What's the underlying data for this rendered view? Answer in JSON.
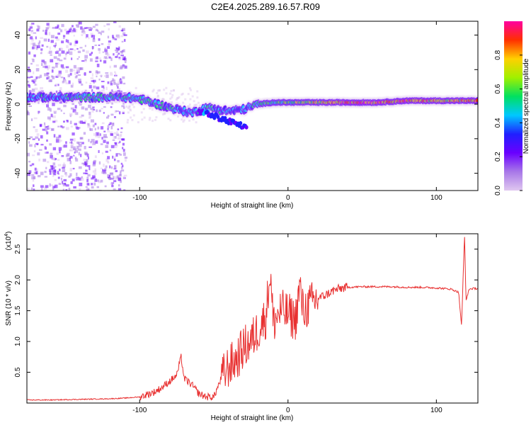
{
  "title": "C2E4.2025.289.16.57.R09",
  "colors": {
    "snr_line": "#e83030",
    "background": "#ffffff",
    "axis": "#000000"
  },
  "chart_data": [
    {
      "type": "heatmap",
      "title": "C2E4.2025.289.16.57.R09",
      "xlabel": "Height of straight line (km)",
      "ylabel": "Frequency (Hz)",
      "xlim": [
        -176,
        128
      ],
      "ylim": [
        -50,
        48
      ],
      "x_ticks": [
        -100,
        0,
        100
      ],
      "x_tick_labels": [
        "-100",
        "0",
        "100"
      ],
      "y_ticks": [
        -40,
        -20,
        0,
        20,
        40
      ],
      "y_tick_labels": [
        "-40",
        "-20",
        "0",
        "20",
        "40"
      ],
      "colorbar": {
        "label": "Normalized spectral amplitude",
        "range": [
          0,
          1
        ],
        "ticks": [
          0.0,
          0.2,
          0.4,
          0.6,
          0.8
        ],
        "tick_labels": [
          "0.0",
          "0.2",
          "0.4",
          "0.6",
          "0.8"
        ],
        "colormap": [
          "#e0c8f0",
          "#a878e8",
          "#6a00ff",
          "#2020ff",
          "#00c8ff",
          "#00e060",
          "#a0f000",
          "#ffd000",
          "#ff3000",
          "#ff00a0"
        ]
      },
      "ridge": [
        {
          "x": -176,
          "y": 4,
          "amp": 0.45
        },
        {
          "x": -140,
          "y": 4,
          "amp": 0.5
        },
        {
          "x": -110,
          "y": 4,
          "amp": 0.55
        },
        {
          "x": -100,
          "y": 3,
          "amp": 0.55
        },
        {
          "x": -80,
          "y": -2,
          "amp": 0.5
        },
        {
          "x": -65,
          "y": -5,
          "amp": 0.45
        },
        {
          "x": -55,
          "y": -2,
          "amp": 0.5
        },
        {
          "x": -40,
          "y": -4,
          "amp": 0.45
        },
        {
          "x": -30,
          "y": -3,
          "amp": 0.45
        },
        {
          "x": -20,
          "y": 0,
          "amp": 0.55
        },
        {
          "x": -10,
          "y": 1,
          "amp": 0.6
        },
        {
          "x": 0,
          "y": 1,
          "amp": 0.65
        },
        {
          "x": 20,
          "y": 1,
          "amp": 0.8
        },
        {
          "x": 40,
          "y": 1,
          "amp": 0.95
        },
        {
          "x": 60,
          "y": 1,
          "amp": 0.95
        },
        {
          "x": 80,
          "y": 2,
          "amp": 0.9
        },
        {
          "x": 100,
          "y": 2,
          "amp": 0.85
        },
        {
          "x": 128,
          "y": 2,
          "amp": 0.8
        }
      ],
      "scatter_region": {
        "x_from": -176,
        "x_to": -110,
        "y_from": -50,
        "y_to": 48,
        "amp_max": 0.25
      }
    },
    {
      "type": "line",
      "xlabel": "Height of straight line (km)",
      "ylabel": "SNR (10 * v/v)",
      "y_multiplier_label": "(x10",
      "y_multiplier_exp": "4",
      "xlim": [
        -176,
        128
      ],
      "ylim": [
        0,
        2.75
      ],
      "x_ticks": [
        -100,
        0,
        100
      ],
      "x_tick_labels": [
        "-100",
        "0",
        "100"
      ],
      "y_ticks": [
        0.5,
        1.0,
        1.5,
        2.0,
        2.5
      ],
      "y_tick_labels": [
        "0.5",
        "1.0",
        "1.5",
        "2.0",
        "2.5"
      ],
      "series": [
        {
          "name": "SNR",
          "x": [
            -176,
            -160,
            -140,
            -120,
            -110,
            -100,
            -90,
            -85,
            -80,
            -75,
            -72,
            -70,
            -65,
            -60,
            -55,
            -50,
            -45,
            -40,
            -35,
            -30,
            -25,
            -20,
            -15,
            -12,
            -10,
            -5,
            0,
            5,
            8,
            10,
            15,
            20,
            25,
            30,
            35,
            40,
            50,
            60,
            70,
            80,
            90,
            100,
            105,
            110,
            115,
            117,
            119,
            120,
            122,
            125,
            128
          ],
          "y": [
            0.05,
            0.05,
            0.06,
            0.07,
            0.08,
            0.1,
            0.18,
            0.25,
            0.35,
            0.45,
            0.75,
            0.4,
            0.3,
            0.15,
            0.1,
            0.1,
            0.4,
            0.6,
            0.7,
            0.9,
            1.0,
            1.2,
            1.4,
            2.15,
            1.3,
            1.5,
            1.45,
            1.35,
            1.9,
            1.5,
            1.6,
            1.7,
            1.75,
            1.82,
            1.86,
            1.88,
            1.89,
            1.89,
            1.89,
            1.88,
            1.88,
            1.87,
            1.86,
            1.85,
            1.8,
            1.25,
            2.75,
            1.65,
            1.85,
            1.86,
            1.86
          ]
        }
      ]
    }
  ]
}
